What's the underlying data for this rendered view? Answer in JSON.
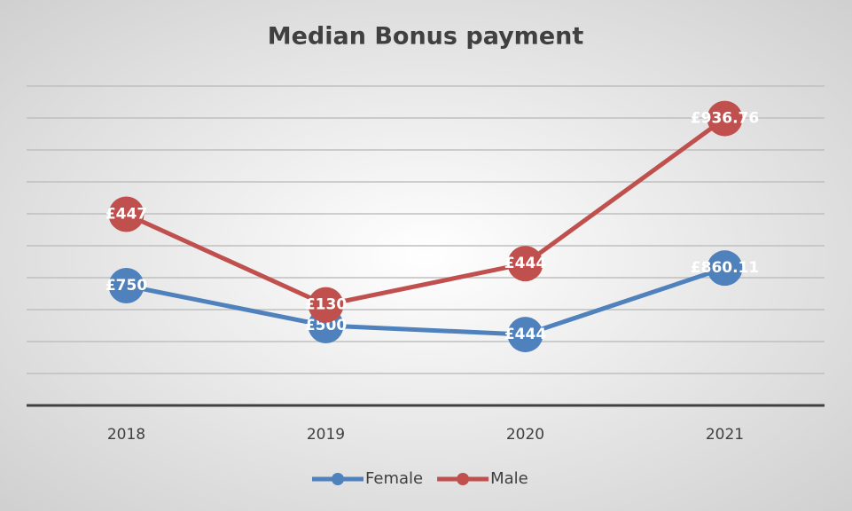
{
  "chart_data": {
    "type": "line",
    "stacked": true,
    "title": "Median Bonus payment",
    "categories": [
      "2018",
      "2019",
      "2020",
      "2021"
    ],
    "series": [
      {
        "name": "Female",
        "color": "#4f81bd",
        "values": [
          750,
          500,
          444,
          860.11
        ],
        "value_labels": [
          "£750",
          "£500",
          "£444",
          "£860.11"
        ]
      },
      {
        "name": "Male",
        "color": "#c0504d",
        "values": [
          447,
          130,
          444,
          936.76
        ],
        "value_labels": [
          "£447",
          "£130",
          "£444",
          "£936.76"
        ]
      }
    ],
    "ylim": [
      0,
      2000
    ],
    "yticks": [
      0,
      200,
      400,
      600,
      800,
      1000,
      1200,
      1400,
      1600,
      1800,
      2000
    ],
    "grid": true,
    "legend": "bottom"
  }
}
